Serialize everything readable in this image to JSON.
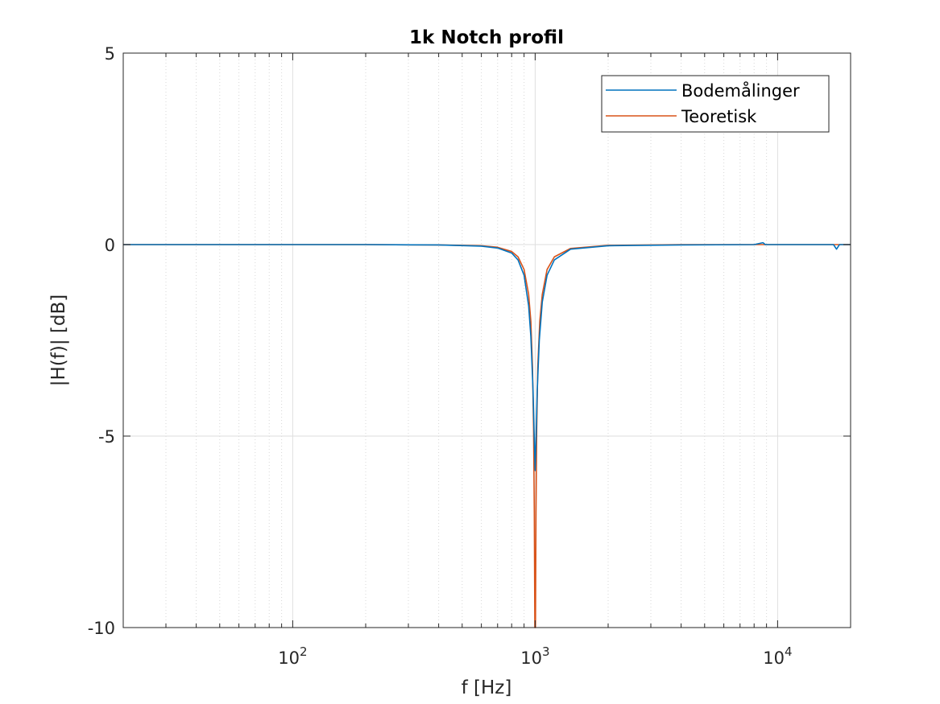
{
  "chart_data": {
    "type": "line",
    "title": "1k Notch profil",
    "xlabel": "f [Hz]",
    "ylabel": "|H(f)| [dB]",
    "xscale": "log",
    "xlim": [
      20,
      20000
    ],
    "ylim": [
      -10,
      5
    ],
    "yticks": [
      -10,
      -5,
      0,
      5
    ],
    "ytick_labels": [
      "-10",
      "-5",
      "0",
      "5"
    ],
    "xticks": [
      100,
      1000,
      10000
    ],
    "xtick_labels": [
      {
        "base": "10",
        "exp": "2"
      },
      {
        "base": "10",
        "exp": "3"
      },
      {
        "base": "10",
        "exp": "4"
      }
    ],
    "grid": true,
    "legend_position": "top-right",
    "series": [
      {
        "name": "Bodemålinger",
        "color": "#0072BD",
        "points": [
          [
            20,
            0.0
          ],
          [
            50,
            0.0
          ],
          [
            100,
            0.0
          ],
          [
            200,
            0.0
          ],
          [
            400,
            -0.01
          ],
          [
            600,
            -0.04
          ],
          [
            700,
            -0.09
          ],
          [
            800,
            -0.22
          ],
          [
            850,
            -0.4
          ],
          [
            900,
            -0.8
          ],
          [
            940,
            -1.6
          ],
          [
            960,
            -2.4
          ],
          [
            980,
            -3.8
          ],
          [
            990,
            -4.9
          ],
          [
            1000,
            -5.9
          ],
          [
            1010,
            -4.9
          ],
          [
            1020,
            -3.8
          ],
          [
            1040,
            -2.5
          ],
          [
            1070,
            -1.5
          ],
          [
            1120,
            -0.8
          ],
          [
            1200,
            -0.4
          ],
          [
            1400,
            -0.12
          ],
          [
            2000,
            -0.03
          ],
          [
            4000,
            -0.01
          ],
          [
            8000,
            0.0
          ],
          [
            8700,
            0.05
          ],
          [
            8900,
            0.0
          ],
          [
            12000,
            0.0
          ],
          [
            17000,
            0.0
          ],
          [
            17500,
            -0.12
          ],
          [
            18000,
            0.0
          ],
          [
            20000,
            0.0
          ]
        ]
      },
      {
        "name": "Teoretisk",
        "color": "#D95319",
        "points": [
          [
            20,
            0.0
          ],
          [
            50,
            0.0
          ],
          [
            100,
            0.0
          ],
          [
            200,
            0.0
          ],
          [
            400,
            -0.01
          ],
          [
            600,
            -0.03
          ],
          [
            700,
            -0.07
          ],
          [
            800,
            -0.18
          ],
          [
            850,
            -0.32
          ],
          [
            900,
            -0.65
          ],
          [
            940,
            -1.3
          ],
          [
            960,
            -2.0
          ],
          [
            975,
            -3.2
          ],
          [
            985,
            -4.8
          ],
          [
            992,
            -7.0
          ],
          [
            997,
            -10.0
          ],
          [
            1003,
            -10.0
          ],
          [
            1008,
            -7.0
          ],
          [
            1015,
            -4.8
          ],
          [
            1025,
            -3.2
          ],
          [
            1045,
            -2.0
          ],
          [
            1070,
            -1.3
          ],
          [
            1120,
            -0.65
          ],
          [
            1200,
            -0.32
          ],
          [
            1400,
            -0.1
          ],
          [
            2000,
            -0.02
          ],
          [
            4000,
            0.0
          ],
          [
            20000,
            0.0
          ]
        ]
      }
    ]
  }
}
